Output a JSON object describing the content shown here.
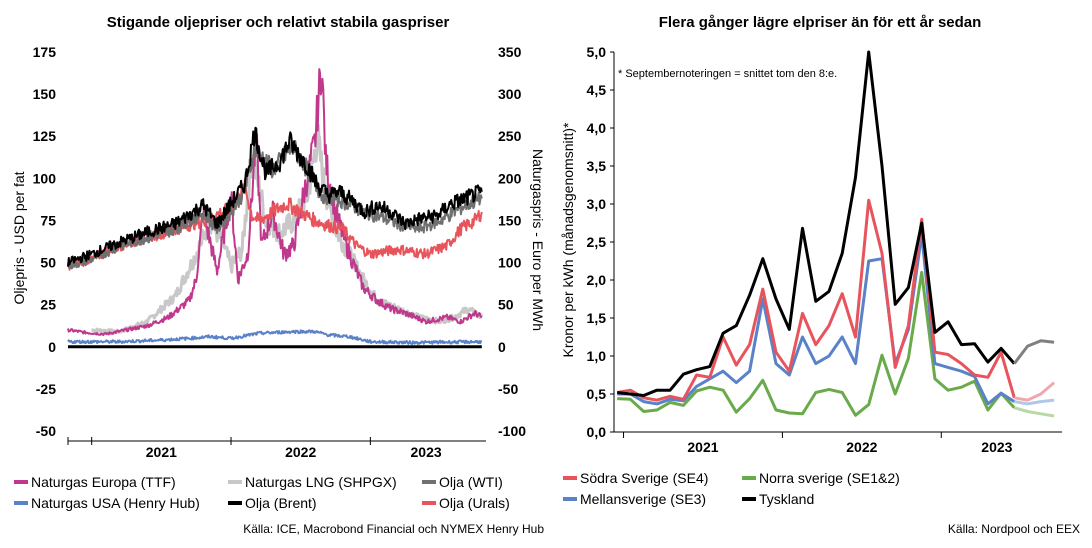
{
  "chart_data": [
    {
      "type": "line",
      "title": "Stigande oljepriser och relativt stabila gaspriser",
      "ylabel_left": "Oljepris - USD per fat",
      "ylabel_right": "Naturgaspris - Euro per MWh",
      "ylim_left": [
        -50,
        175
      ],
      "ylim_right": [
        -100,
        350
      ],
      "yticks_left": [
        "175",
        "150",
        "125",
        "100",
        "75",
        "50",
        "25",
        "0",
        "-25",
        "-50"
      ],
      "yticks_right": [
        "350",
        "300",
        "250",
        "200",
        "150",
        "100",
        "50",
        "0",
        "-50",
        "-100"
      ],
      "x_range": [
        2020.83,
        2023.83
      ],
      "year_labels": [
        {
          "label": "2021",
          "x": 2021.5
        },
        {
          "label": "2022",
          "x": 2022.5
        },
        {
          "label": "2023",
          "x": 2023.4
        }
      ],
      "year_ticks": [
        2021.0,
        2022.0,
        2023.0
      ],
      "legend": "bottom",
      "source": "Källa: ICE, Macrobond Financial och NYMEX Henry Hub",
      "series": [
        {
          "name": "Naturgas LNG (SHPGX)",
          "color": "#c8c8c8",
          "axis": "right",
          "width": 3,
          "points": [
            [
              2021.0,
              20
            ],
            [
              2021.2,
              18
            ],
            [
              2021.4,
              30
            ],
            [
              2021.6,
              60
            ],
            [
              2021.75,
              110
            ],
            [
              2021.85,
              150
            ],
            [
              2021.95,
              120
            ],
            [
              2022.0,
              95
            ],
            [
              2022.08,
              115
            ],
            [
              2022.15,
              230
            ],
            [
              2022.25,
              150
            ],
            [
              2022.35,
              135
            ],
            [
              2022.45,
              150
            ],
            [
              2022.55,
              180
            ],
            [
              2022.62,
              250
            ],
            [
              2022.67,
              190
            ],
            [
              2022.75,
              140
            ],
            [
              2022.85,
              110
            ],
            [
              2022.95,
              80
            ],
            [
              2023.05,
              55
            ],
            [
              2023.2,
              45
            ],
            [
              2023.35,
              35
            ],
            [
              2023.5,
              30
            ],
            [
              2023.6,
              35
            ],
            [
              2023.7,
              45
            ],
            [
              2023.8,
              35
            ]
          ]
        },
        {
          "name": "Naturgas Europa (TTF)",
          "color": "#c0388c",
          "axis": "right",
          "width": 2,
          "points": [
            [
              2020.83,
              20
            ],
            [
              2020.95,
              17
            ],
            [
              2021.1,
              15
            ],
            [
              2021.25,
              20
            ],
            [
              2021.4,
              25
            ],
            [
              2021.55,
              35
            ],
            [
              2021.7,
              55
            ],
            [
              2021.75,
              80
            ],
            [
              2021.8,
              160
            ],
            [
              2021.9,
              90
            ],
            [
              2022.0,
              180
            ],
            [
              2022.05,
              80
            ],
            [
              2022.12,
              110
            ],
            [
              2022.18,
              250
            ],
            [
              2022.22,
              120
            ],
            [
              2022.3,
              160
            ],
            [
              2022.38,
              110
            ],
            [
              2022.45,
              120
            ],
            [
              2022.52,
              180
            ],
            [
              2022.6,
              240
            ],
            [
              2022.65,
              337
            ],
            [
              2022.68,
              220
            ],
            [
              2022.75,
              160
            ],
            [
              2022.85,
              110
            ],
            [
              2022.95,
              70
            ],
            [
              2023.05,
              55
            ],
            [
              2023.15,
              45
            ],
            [
              2023.25,
              40
            ],
            [
              2023.4,
              30
            ],
            [
              2023.55,
              35
            ],
            [
              2023.65,
              30
            ],
            [
              2023.75,
              40
            ],
            [
              2023.8,
              35
            ]
          ]
        },
        {
          "name": "Olja (Urals)",
          "color": "#e8545c",
          "axis": "left",
          "width": 2,
          "points": [
            [
              2020.83,
              48
            ],
            [
              2021.0,
              52
            ],
            [
              2021.2,
              60
            ],
            [
              2021.4,
              65
            ],
            [
              2021.6,
              70
            ],
            [
              2021.8,
              75
            ],
            [
              2022.0,
              82
            ],
            [
              2022.1,
              95
            ],
            [
              2022.15,
              78
            ],
            [
              2022.2,
              75
            ],
            [
              2022.3,
              80
            ],
            [
              2022.4,
              85
            ],
            [
              2022.5,
              80
            ],
            [
              2022.6,
              75
            ],
            [
              2022.7,
              72
            ],
            [
              2022.8,
              70
            ],
            [
              2022.9,
              60
            ],
            [
              2023.0,
              55
            ],
            [
              2023.2,
              58
            ],
            [
              2023.4,
              55
            ],
            [
              2023.55,
              60
            ],
            [
              2023.65,
              70
            ],
            [
              2023.75,
              75
            ],
            [
              2023.8,
              80
            ]
          ]
        },
        {
          "name": "Olja (WTI)",
          "color": "#707070",
          "axis": "left",
          "width": 2,
          "points": [
            [
              2020.83,
              48
            ],
            [
              2021.0,
              52
            ],
            [
              2021.2,
              60
            ],
            [
              2021.4,
              65
            ],
            [
              2021.6,
              70
            ],
            [
              2021.8,
              80
            ],
            [
              2021.9,
              70
            ],
            [
              2022.0,
              80
            ],
            [
              2022.1,
              93
            ],
            [
              2022.17,
              118
            ],
            [
              2022.3,
              105
            ],
            [
              2022.4,
              115
            ],
            [
              2022.45,
              118
            ],
            [
              2022.55,
              105
            ],
            [
              2022.65,
              90
            ],
            [
              2022.75,
              88
            ],
            [
              2022.85,
              85
            ],
            [
              2022.95,
              80
            ],
            [
              2023.05,
              78
            ],
            [
              2023.2,
              73
            ],
            [
              2023.35,
              70
            ],
            [
              2023.5,
              75
            ],
            [
              2023.6,
              80
            ],
            [
              2023.7,
              85
            ],
            [
              2023.8,
              88
            ]
          ]
        },
        {
          "name": "Olja (Brent)",
          "color": "#000000",
          "axis": "left",
          "width": 2,
          "points": [
            [
              2020.83,
              50
            ],
            [
              2021.0,
              55
            ],
            [
              2021.2,
              62
            ],
            [
              2021.4,
              68
            ],
            [
              2021.6,
              73
            ],
            [
              2021.8,
              84
            ],
            [
              2021.9,
              73
            ],
            [
              2022.0,
              85
            ],
            [
              2022.1,
              97
            ],
            [
              2022.17,
              128
            ],
            [
              2022.25,
              103
            ],
            [
              2022.35,
              110
            ],
            [
              2022.42,
              122
            ],
            [
              2022.48,
              115
            ],
            [
              2022.55,
              107
            ],
            [
              2022.62,
              96
            ],
            [
              2022.7,
              90
            ],
            [
              2022.78,
              92
            ],
            [
              2022.88,
              86
            ],
            [
              2022.96,
              80
            ],
            [
              2023.05,
              84
            ],
            [
              2023.15,
              80
            ],
            [
              2023.25,
              73
            ],
            [
              2023.35,
              76
            ],
            [
              2023.48,
              78
            ],
            [
              2023.58,
              85
            ],
            [
              2023.68,
              88
            ],
            [
              2023.8,
              92
            ]
          ]
        },
        {
          "name": "Naturgas USA (Henry Hub)",
          "color": "#5a82c8",
          "axis": "left",
          "width": 2,
          "points": [
            [
              2020.83,
              3
            ],
            [
              2021.0,
              3
            ],
            [
              2021.2,
              3
            ],
            [
              2021.5,
              4
            ],
            [
              2021.7,
              5
            ],
            [
              2021.85,
              6
            ],
            [
              2022.0,
              5
            ],
            [
              2022.2,
              8
            ],
            [
              2022.45,
              9
            ],
            [
              2022.6,
              9
            ],
            [
              2022.7,
              7
            ],
            [
              2022.85,
              6
            ],
            [
              2023.0,
              3
            ],
            [
              2023.3,
              2.5
            ],
            [
              2023.6,
              2.8
            ],
            [
              2023.8,
              3
            ]
          ]
        },
        {
          "name": "",
          "color": "#000000",
          "axis": "left",
          "width": 3,
          "points": [
            [
              2020.83,
              0
            ],
            [
              2023.8,
              0
            ]
          ]
        }
      ]
    },
    {
      "type": "line",
      "title": "Flera gånger lägre elpriser än för ett år sedan",
      "note": "* Septembernoteringen = snittet tom den 8:e.",
      "ylabel": "Kronor per kWh (månadsgenomsnitt)*",
      "ylim": [
        0,
        5
      ],
      "yticks": [
        "5,0",
        "4,5",
        "4,0",
        "3,5",
        "3,0",
        "2,5",
        "2,0",
        "1,5",
        "1,0",
        "0,5",
        "0,0"
      ],
      "x_range": [
        2020.94,
        2023.76
      ],
      "year_labels": [
        {
          "label": "2021",
          "x": 2021.5
        },
        {
          "label": "2022",
          "x": 2022.5
        },
        {
          "label": "2023",
          "x": 2023.35
        }
      ],
      "year_ticks": [
        2021.0,
        2022.0,
        2023.0
      ],
      "legend": "bottom",
      "source": "Källa: Nordpool och EEX",
      "series": [
        {
          "name": "Norra sverige (SE1&2)",
          "color": "#6aaa4a",
          "faded_color": "#b8d8a8",
          "axis": "left",
          "values": [
            0.44,
            0.43,
            0.27,
            0.29,
            0.39,
            0.35,
            0.54,
            0.59,
            0.55,
            0.26,
            0.44,
            0.68,
            0.29,
            0.25,
            0.24,
            0.52,
            0.56,
            0.52,
            0.22,
            0.36,
            1.01,
            0.5,
            0.97,
            2.1,
            0.7,
            0.55,
            0.59,
            0.67,
            0.29,
            0.51,
            0.32,
            0.27,
            0.24,
            0.21
          ]
        },
        {
          "name": "Mellansverige (SE3)",
          "color": "#5a82c8",
          "faded_color": "#b0c8e8",
          "axis": "left",
          "values": [
            0.5,
            0.5,
            0.4,
            0.37,
            0.43,
            0.41,
            0.6,
            0.7,
            0.8,
            0.65,
            0.8,
            1.75,
            0.9,
            0.75,
            1.25,
            0.9,
            1.0,
            1.25,
            0.9,
            2.25,
            2.28,
            0.9,
            1.35,
            2.6,
            0.9,
            0.85,
            0.8,
            0.73,
            0.37,
            0.51,
            0.4,
            0.37,
            0.4,
            0.42
          ]
        },
        {
          "name": "Södra Sverige (SE4)",
          "color": "#e8545c",
          "faded_color": "#f0a8b0",
          "axis": "left",
          "values": [
            0.52,
            0.55,
            0.45,
            0.42,
            0.47,
            0.43,
            0.75,
            0.72,
            1.25,
            0.88,
            1.15,
            1.88,
            1.05,
            0.8,
            1.56,
            1.15,
            1.4,
            1.82,
            1.25,
            3.05,
            2.35,
            0.85,
            1.4,
            2.8,
            1.05,
            1.02,
            0.9,
            0.75,
            0.72,
            1.05,
            0.45,
            0.42,
            0.5,
            0.65
          ]
        },
        {
          "name": "Tyskland",
          "color": "#000000",
          "faded_color": "#808080",
          "axis": "left",
          "values": [
            0.52,
            0.5,
            0.48,
            0.55,
            0.55,
            0.76,
            0.82,
            0.86,
            1.3,
            1.4,
            1.8,
            2.28,
            1.75,
            1.35,
            2.68,
            1.72,
            1.85,
            2.35,
            3.35,
            5.0,
            3.5,
            1.68,
            1.9,
            2.75,
            1.31,
            1.45,
            1.15,
            1.16,
            0.92,
            1.1,
            0.9,
            1.13,
            1.2,
            1.18
          ]
        }
      ]
    }
  ]
}
